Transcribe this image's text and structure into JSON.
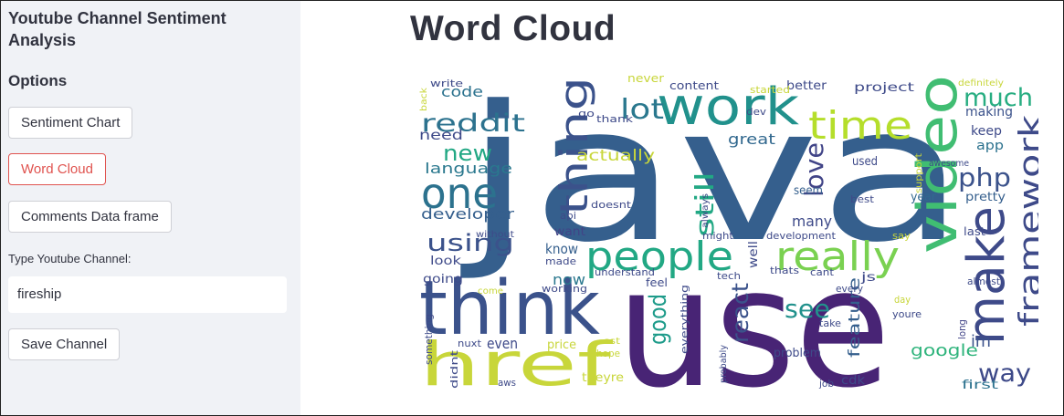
{
  "sidebar": {
    "title": "Youtube Channel Sentiment Analysis",
    "options_heading": "Options",
    "buttons": {
      "sentiment_chart": "Sentiment Chart",
      "word_cloud": "Word Cloud",
      "comments_df": "Comments Data frame"
    },
    "channel_label": "Type Youtube Channel:",
    "channel_value": "fireship",
    "save_button": "Save Channel"
  },
  "main": {
    "title": "Word Cloud"
  },
  "colors": {
    "accent": "#e0534f",
    "sidebar_bg": "#f0f2f6",
    "cloud_dark_purple": "#482475",
    "cloud_blue": "#355f8d",
    "cloud_teal": "#21918c",
    "cloud_green": "#5ec962",
    "cloud_yellow": "#c8d63a"
  },
  "wordcloud": {
    "words": [
      "java",
      "use",
      "think",
      "href",
      "make",
      "video",
      "work",
      "people",
      "really",
      "framework",
      "one",
      "thing",
      "time",
      "reddit",
      "much",
      "lot",
      "new",
      "php",
      "love",
      "still",
      "good",
      "react",
      "see",
      "using",
      "way",
      "google",
      "developer",
      "language",
      "code",
      "need",
      "actually",
      "many",
      "feature",
      "im",
      "app",
      "keep",
      "making",
      "great",
      "seem",
      "used",
      "year",
      "pretty",
      "now",
      "know",
      "want",
      "made",
      "look",
      "going",
      "even",
      "price",
      "hope",
      "theyre",
      "problem",
      "cdk",
      "job",
      "first",
      "long",
      "almost",
      "day",
      "youre",
      "say",
      "last",
      "tech",
      "well",
      "might",
      "development",
      "thats",
      "cant",
      "js",
      "take",
      "every",
      "feel",
      "everything",
      "understand",
      "working",
      "come",
      "sst",
      "nuxt",
      "aws",
      "didnt",
      "something",
      "probably",
      "always",
      "api",
      "doesnt",
      "best",
      "awesome",
      "support",
      "definitely",
      "better",
      "project",
      "started",
      "content",
      "never",
      "write",
      "go",
      "thank",
      "dev",
      "without",
      "back"
    ]
  }
}
